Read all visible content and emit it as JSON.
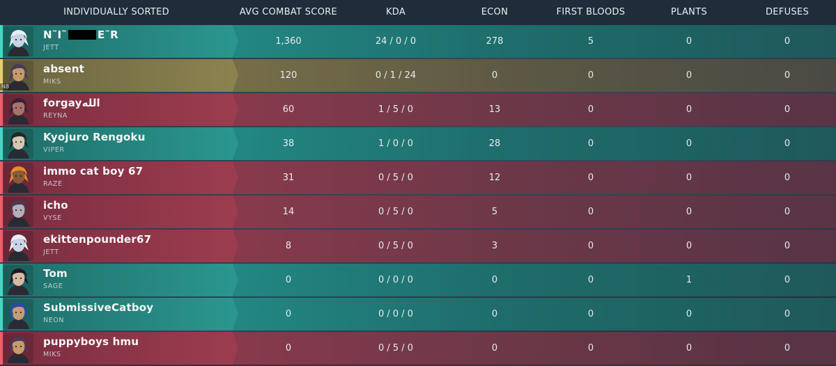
{
  "header": {
    "player": "INDIVIDUALLY SORTED",
    "acs": "AVG COMBAT SCORE",
    "kda": "KDA",
    "econ": "ECON",
    "first_bloods": "FIRST BLOODS",
    "plants": "PLANTS",
    "defuses": "DEFUSES"
  },
  "rows": [
    {
      "name_prefix": "N˜I˜",
      "name_suffix": "E˜R",
      "censored": true,
      "agent": "JETT",
      "team": "green",
      "acs": "1,360",
      "kda": "24 / 0 / 0",
      "econ": "278",
      "first_bloods": "5",
      "plants": "0",
      "defuses": "0",
      "avatar_color": "#c8d3e6",
      "hair_color": "#e8eef5"
    },
    {
      "name": "absent",
      "agent": "MIKS",
      "team": "gold",
      "badge": "N8",
      "acs": "120",
      "kda": "0 / 1 / 24",
      "econ": "0",
      "first_bloods": "0",
      "plants": "0",
      "defuses": "0",
      "avatar_color": "#c79a6a",
      "hair_color": "#4a3a5a"
    },
    {
      "name": "forgayالله",
      "agent": "REYNA",
      "team": "red",
      "acs": "60",
      "kda": "1 / 5 / 0",
      "econ": "13",
      "first_bloods": "0",
      "plants": "0",
      "defuses": "0",
      "avatar_color": "#a8746a",
      "hair_color": "#3a1e3a"
    },
    {
      "name": "Kyojuro Rengoku",
      "agent": "VIPER",
      "team": "green",
      "acs": "38",
      "kda": "1 / 0 / 0",
      "econ": "28",
      "first_bloods": "0",
      "plants": "0",
      "defuses": "0",
      "avatar_color": "#d8c6b6",
      "hair_color": "#1f2a22"
    },
    {
      "name": "immo cat boy 67",
      "agent": "RAZE",
      "team": "red",
      "acs": "31",
      "kda": "0 / 5 / 0",
      "econ": "12",
      "first_bloods": "0",
      "plants": "0",
      "defuses": "0",
      "avatar_color": "#8a5a3a",
      "hair_color": "#e0902a"
    },
    {
      "name": "icho",
      "agent": "VYSE",
      "team": "red",
      "acs": "14",
      "kda": "0 / 5 / 0",
      "econ": "5",
      "first_bloods": "0",
      "plants": "0",
      "defuses": "0",
      "avatar_color": "#b8aeb8",
      "hair_color": "#4a3a52"
    },
    {
      "name": "ekittenpounder67",
      "agent": "JETT",
      "team": "red",
      "acs": "8",
      "kda": "0 / 5 / 0",
      "econ": "3",
      "first_bloods": "0",
      "plants": "0",
      "defuses": "0",
      "avatar_color": "#c8d3e6",
      "hair_color": "#e8eef5"
    },
    {
      "name": "Tom",
      "agent": "SAGE",
      "team": "green",
      "acs": "0",
      "kda": "0 / 0 / 0",
      "econ": "0",
      "first_bloods": "0",
      "plants": "1",
      "defuses": "0",
      "avatar_color": "#d8b8a0",
      "hair_color": "#1a1a22"
    },
    {
      "name": "SubmissiveCatboy",
      "agent": "NEON",
      "team": "green",
      "acs": "0",
      "kda": "0 / 0 / 0",
      "econ": "0",
      "first_bloods": "0",
      "plants": "0",
      "defuses": "0",
      "avatar_color": "#c89a7a",
      "hair_color": "#2a4aa8"
    },
    {
      "name": "puppyboys hmu",
      "agent": "MIKS",
      "team": "red",
      "acs": "0",
      "kda": "0 / 5 / 0",
      "econ": "0",
      "first_bloods": "0",
      "plants": "0",
      "defuses": "0",
      "avatar_color": "#c79a6a",
      "hair_color": "#4a3a5a"
    }
  ]
}
